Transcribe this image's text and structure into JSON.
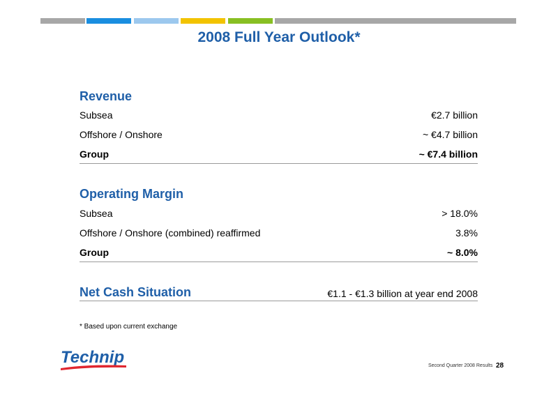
{
  "colors": {
    "title": "#1f5fa8",
    "bar_segments": [
      "#a7a7a7",
      "#1a8ee0",
      "#9cc8ee",
      "#f2c300",
      "#88bf22",
      "#a7a7a7"
    ]
  },
  "title": "2008 Full Year Outlook*",
  "revenue": {
    "heading": "Revenue",
    "rows": [
      {
        "label": "Subsea",
        "value": "€2.7 billion"
      },
      {
        "label": "Offshore / Onshore",
        "value": "~ €4.7 billion"
      },
      {
        "label": "Group",
        "value": "~ €7.4 billion"
      }
    ]
  },
  "operating_margin": {
    "heading": "Operating Margin",
    "rows": [
      {
        "label": "Subsea",
        "value": "> 18.0%"
      },
      {
        "label": "Offshore / Onshore (combined) reaffirmed",
        "value": "3.8%"
      },
      {
        "label": "Group",
        "value": "~ 8.0%"
      }
    ]
  },
  "net_cash": {
    "heading": "Net Cash Situation",
    "value": "€1.1 - €1.3 billion at year end 2008"
  },
  "footnote": "* Based upon current exchange",
  "logo_text": "Technip",
  "footer": {
    "text": "Second Quarter 2008 Results",
    "page": "28"
  }
}
